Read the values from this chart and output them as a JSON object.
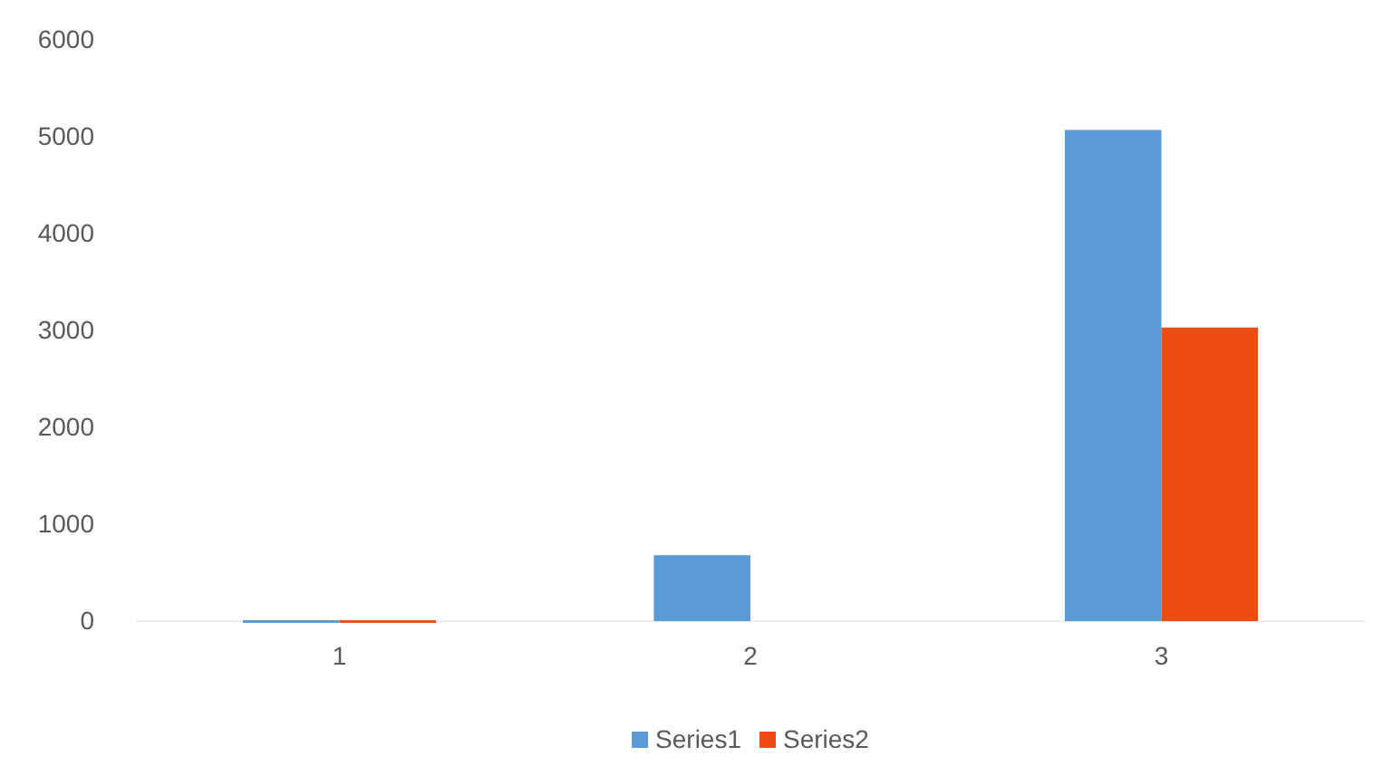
{
  "chart_data": {
    "type": "bar",
    "categories": [
      "1",
      "2",
      "3"
    ],
    "series": [
      {
        "name": "Series1",
        "color": "#5b9bd5",
        "values": [
          10,
          680,
          5070
        ]
      },
      {
        "name": "Series2",
        "color": "#ed4d12",
        "values": [
          10,
          0,
          3030
        ]
      }
    ],
    "ylim": [
      0,
      6000
    ],
    "yticks": [
      0,
      1000,
      2000,
      3000,
      4000,
      5000,
      6000
    ],
    "grid": false,
    "legend": "bottom"
  }
}
